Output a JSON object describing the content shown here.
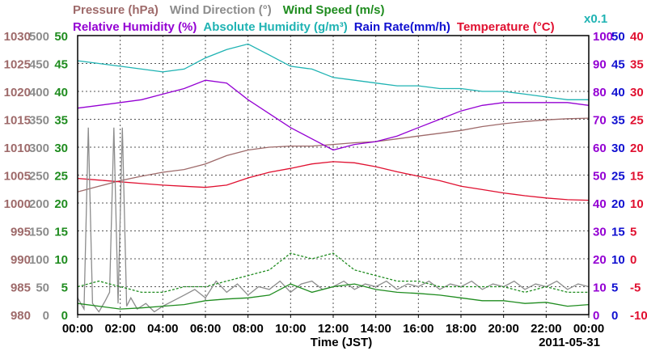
{
  "chart_data": {
    "type": "line",
    "legend": {
      "row1": [
        {
          "label": "Pressure (hPa)",
          "color": "#9e6a6a"
        },
        {
          "label": "Wind Direction (°)",
          "color": "#8c8c8c"
        },
        {
          "label": "Wind Speed (m/s)",
          "color": "#1f8c1f"
        }
      ],
      "row2": [
        {
          "label": "Relative Humidity (%)",
          "color": "#9400d3"
        },
        {
          "label": "Absolute Humidity (g/m³)",
          "color": "#1fb3b3"
        },
        {
          "label": "Rain Rate(mm/h)",
          "color": "#1010d0"
        },
        {
          "label": "Temperature (°C)",
          "color": "#e01030"
        }
      ],
      "abs_humidity_scale": "x0.1"
    },
    "xlabel": "Time (JST)",
    "date": "2011-05-31",
    "x_ticks": [
      "00:00",
      "02:00",
      "04:00",
      "06:00",
      "08:00",
      "10:00",
      "12:00",
      "14:00",
      "16:00",
      "18:00",
      "20:00",
      "22:00",
      "00:00"
    ],
    "xlim": [
      0,
      24
    ],
    "grid": true,
    "axes": [
      {
        "name": "Pressure",
        "side": "left",
        "color": "#9e6a6a",
        "min": 980,
        "max": 1030,
        "ticks": [
          980,
          985,
          990,
          995,
          1000,
          1005,
          1010,
          1015,
          1020,
          1025,
          1030
        ]
      },
      {
        "name": "Wind Direction",
        "side": "left",
        "color": "#8c8c8c",
        "min": 0,
        "max": 500,
        "ticks": [
          0,
          50,
          100,
          150,
          200,
          250,
          300,
          350,
          400,
          450,
          500
        ]
      },
      {
        "name": "Wind Speed",
        "side": "left",
        "color": "#1f8c1f",
        "min": 0,
        "max": 50,
        "ticks": [
          0,
          5,
          10,
          15,
          20,
          25,
          30,
          35,
          40,
          45,
          50
        ]
      },
      {
        "name": "Relative Humidity",
        "side": "right",
        "color": "#9400d3",
        "min": 0,
        "max": 100,
        "ticks": [
          0,
          10,
          20,
          30,
          40,
          50,
          60,
          70,
          80,
          90,
          100
        ]
      },
      {
        "name": "Rain Rate",
        "side": "right",
        "color": "#1010d0",
        "min": 0,
        "max": 50,
        "ticks": [
          0,
          5,
          10,
          15,
          20,
          25,
          30,
          35,
          40,
          45,
          50
        ]
      },
      {
        "name": "Temperature",
        "side": "right",
        "color": "#e01030",
        "min": -10,
        "max": 40,
        "ticks": [
          -10,
          -5,
          0,
          5,
          10,
          15,
          20,
          25,
          30,
          35,
          40
        ]
      }
    ],
    "series": [
      {
        "name": "Pressure",
        "color": "#9e6a6a",
        "axis": "Pressure",
        "x": [
          0,
          1,
          2,
          3,
          4,
          5,
          6,
          7,
          8,
          9,
          10,
          11,
          12,
          13,
          14,
          15,
          16,
          17,
          18,
          19,
          20,
          21,
          22,
          23,
          24
        ],
        "y": [
          1002.0,
          1003.0,
          1004.0,
          1004.8,
          1005.5,
          1006.0,
          1007.0,
          1008.5,
          1009.5,
          1010.0,
          1010.2,
          1010.2,
          1010.5,
          1010.8,
          1011.0,
          1011.5,
          1012.0,
          1012.5,
          1013.0,
          1013.7,
          1014.2,
          1014.6,
          1014.9,
          1015.1,
          1015.2
        ]
      },
      {
        "name": "Absolute Humidity",
        "color": "#1fb3b3",
        "axis": "Relative Humidity",
        "x": [
          0,
          1,
          2,
          3,
          4,
          5,
          6,
          7,
          8,
          9,
          10,
          11,
          12,
          13,
          14,
          15,
          16,
          17,
          18,
          19,
          20,
          21,
          22,
          23,
          24
        ],
        "y": [
          91,
          90,
          89,
          88,
          87,
          88,
          92,
          95,
          97,
          93,
          89,
          88,
          85,
          84,
          83,
          82,
          82,
          81,
          81,
          80,
          80,
          79,
          78,
          77,
          77
        ]
      },
      {
        "name": "Relative Humidity",
        "color": "#9400d3",
        "axis": "Relative Humidity",
        "x": [
          0,
          1,
          2,
          3,
          4,
          5,
          6,
          7,
          8,
          9,
          10,
          11,
          12,
          13,
          14,
          15,
          16,
          17,
          18,
          19,
          20,
          21,
          22,
          23,
          24
        ],
        "y": [
          74,
          75,
          76,
          77,
          79,
          81,
          84,
          83,
          77,
          72,
          67,
          63,
          59,
          61,
          62,
          64,
          67,
          70,
          73,
          75,
          76,
          76,
          76,
          76,
          75
        ]
      },
      {
        "name": "Temperature",
        "color": "#e01030",
        "axis": "Temperature",
        "x": [
          0,
          1,
          2,
          3,
          4,
          5,
          6,
          7,
          8,
          9,
          10,
          11,
          12,
          13,
          14,
          15,
          16,
          17,
          18,
          19,
          20,
          21,
          22,
          23,
          24
        ],
        "y": [
          14.4,
          14.1,
          13.8,
          13.5,
          13.2,
          13.0,
          12.8,
          13.2,
          14.5,
          15.5,
          16.2,
          17.0,
          17.4,
          17.2,
          16.5,
          15.6,
          14.8,
          14.0,
          13.0,
          12.4,
          11.8,
          11.3,
          10.9,
          10.6,
          10.5
        ]
      },
      {
        "name": "Wind Direction",
        "color": "#8c8c8c",
        "axis": "Wind Direction",
        "x": [
          0,
          0.3,
          0.5,
          0.7,
          1.0,
          1.3,
          1.5,
          1.7,
          1.9,
          2.1,
          2.3,
          2.5,
          2.8,
          3.2,
          3.6,
          4.0,
          4.5,
          5,
          5.5,
          6,
          6.5,
          7,
          7.5,
          8,
          8.5,
          9,
          9.5,
          10,
          10.5,
          11,
          11.5,
          12,
          12.5,
          13,
          13.5,
          14,
          14.5,
          15,
          15.5,
          16,
          16.5,
          17,
          17.5,
          18,
          18.5,
          19,
          19.5,
          20,
          20.5,
          21,
          21.5,
          22,
          22.5,
          23,
          23.5,
          24
        ],
        "y": [
          30,
          10,
          335,
          20,
          5,
          25,
          40,
          335,
          20,
          335,
          15,
          30,
          10,
          20,
          5,
          15,
          25,
          35,
          45,
          30,
          60,
          40,
          55,
          35,
          50,
          45,
          60,
          40,
          55,
          60,
          45,
          50,
          60,
          45,
          55,
          50,
          60,
          45,
          55,
          50,
          60,
          45,
          55,
          50,
          60,
          45,
          55,
          50,
          60,
          45,
          55,
          50,
          60,
          45,
          55,
          50
        ]
      },
      {
        "name": "Wind Speed",
        "color": "#1f8c1f",
        "axis": "Wind Speed",
        "x": [
          0,
          1,
          2,
          3,
          4,
          5,
          6,
          7,
          8,
          9,
          10,
          11,
          12,
          13,
          14,
          15,
          16,
          17,
          18,
          19,
          20,
          21,
          22,
          23,
          24
        ],
        "y": [
          2.0,
          1.5,
          1.0,
          1.2,
          1.5,
          1.8,
          2.5,
          2.8,
          3.0,
          3.5,
          5.5,
          4.0,
          5.0,
          5.5,
          4.5,
          4.0,
          3.8,
          3.5,
          3.0,
          2.5,
          2.5,
          2.0,
          2.2,
          1.5,
          1.8
        ]
      },
      {
        "name": "Wind Speed Gust",
        "color": "#1f8c1f",
        "axis": "Wind Speed",
        "x": [
          0,
          1,
          2,
          3,
          4,
          5,
          6,
          7,
          8,
          9,
          10,
          11,
          12,
          13,
          14,
          15,
          16,
          17,
          18,
          19,
          20,
          21,
          22,
          23,
          24
        ],
        "y": [
          5,
          6,
          5,
          4,
          4,
          5,
          5,
          6,
          7,
          8,
          11,
          10,
          11,
          8,
          7,
          6,
          6,
          5,
          5,
          5,
          5,
          4,
          5,
          4,
          4
        ]
      }
    ]
  }
}
